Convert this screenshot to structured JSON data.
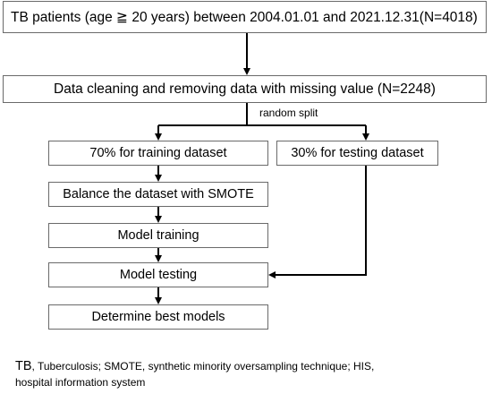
{
  "boxes": {
    "cohort": "TB patients (age ≧ 20 years) between 2004.01.01 and 2021.12.31(N=4018)",
    "cleaning": "Data cleaning and  removing data with missing value (N=2248)",
    "training_split": "70% for training dataset",
    "testing_split": "30% for testing dataset",
    "balance": "Balance the dataset with SMOTE",
    "model_training": "Model training",
    "model_testing": "Model testing",
    "best_models": "Determine best models"
  },
  "split_label": "random split",
  "footnote": {
    "abbr_tb": "TB",
    "text": ", Tuberculosis; SMOTE, synthetic minority oversampling technique; HIS, hospital information system"
  },
  "colors": {
    "arrow": "#000000",
    "box_border": "#6a6a6a"
  }
}
